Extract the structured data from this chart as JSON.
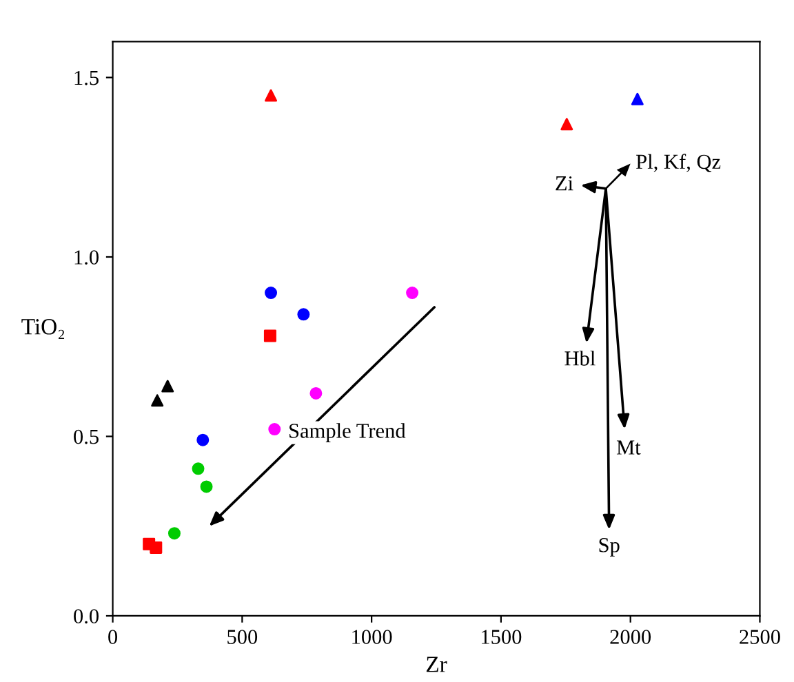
{
  "chart_data": {
    "type": "scatter",
    "xlabel": "Zr",
    "ylabel": "TiO₂",
    "xlim": [
      0,
      2500
    ],
    "ylim": [
      0,
      1.6
    ],
    "xticks": [
      0,
      500,
      1000,
      1500,
      2000,
      2500
    ],
    "yticks": [
      {
        "value": 0,
        "label": "0.0"
      },
      {
        "value": 0.5,
        "label": "0.5"
      },
      {
        "value": 1.0,
        "label": "1.0"
      },
      {
        "value": 1.5,
        "label": "1.5"
      }
    ],
    "grid": false,
    "series": [
      {
        "marker": "triangle",
        "color": "#ff0000",
        "x": [
          611,
          1754
        ],
        "values": [
          1.45,
          1.37
        ]
      },
      {
        "marker": "triangle",
        "color": "#0000ff",
        "x": [
          2027
        ],
        "values": [
          1.44
        ]
      },
      {
        "marker": "triangle",
        "color": "#000000",
        "x": [
          172,
          212
        ],
        "values": [
          0.6,
          0.64
        ]
      },
      {
        "marker": "circle",
        "color": "#0000ff",
        "x": [
          611,
          737,
          348
        ],
        "values": [
          0.9,
          0.84,
          0.49
        ]
      },
      {
        "marker": "square",
        "color": "#ff0000",
        "x": [
          608,
          140,
          167
        ],
        "values": [
          0.78,
          0.2,
          0.19
        ]
      },
      {
        "marker": "circle",
        "color": "#00cc00",
        "x": [
          330,
          362,
          238
        ],
        "values": [
          0.41,
          0.36,
          0.23
        ]
      },
      {
        "marker": "circle",
        "color": "#ff00ff",
        "x": [
          1157,
          785,
          625
        ],
        "values": [
          0.9,
          0.62,
          0.52
        ]
      }
    ],
    "annotations": [
      "Sample Trend",
      "Zi",
      "Pl, Kf, Qz",
      "Hbl",
      "Mt",
      "Sp"
    ]
  }
}
